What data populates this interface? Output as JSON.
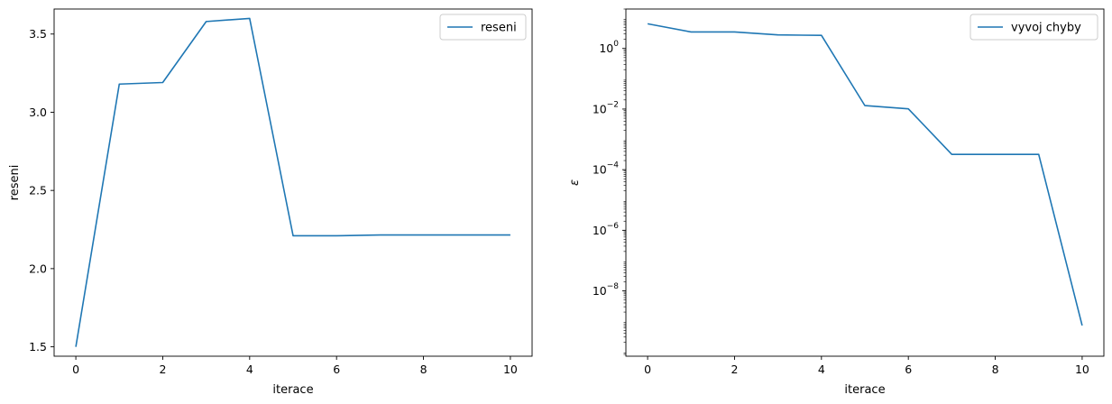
{
  "chart_data": [
    {
      "type": "line",
      "xlabel": "iterace",
      "ylabel": "reseni",
      "xlim": [
        -0.5,
        10.5
      ],
      "ylim": [
        1.44,
        3.66
      ],
      "xticks": [
        0,
        2,
        4,
        6,
        8,
        10
      ],
      "xtick_labels": [
        "0",
        "2",
        "4",
        "6",
        "8",
        "10"
      ],
      "yticks": [
        1.5,
        2.0,
        2.5,
        3.0,
        3.5
      ],
      "ytick_labels": [
        "1.5",
        "2.0",
        "2.5",
        "3.0",
        "3.5"
      ],
      "yscale": "linear",
      "grid": false,
      "legend_position": "upper right",
      "series": [
        {
          "name": "reseni",
          "color": "#1f77b4",
          "x": [
            0,
            1,
            2,
            3,
            4,
            5,
            6,
            7,
            8,
            9,
            10
          ],
          "y": [
            1.5,
            3.18,
            3.19,
            3.58,
            3.6,
            2.21,
            2.21,
            2.215,
            2.215,
            2.215,
            2.215
          ]
        }
      ]
    },
    {
      "type": "line",
      "xlabel": "iterace",
      "ylabel": "ε",
      "xlim": [
        -0.5,
        10.5
      ],
      "ylim": [
        7e-11,
        20
      ],
      "xticks": [
        0,
        2,
        4,
        6,
        8,
        10
      ],
      "xtick_labels": [
        "0",
        "2",
        "4",
        "6",
        "8",
        "10"
      ],
      "yticks": [
        1e-08,
        1e-06,
        0.0001,
        0.01,
        1
      ],
      "ytick_labels": [
        {
          "base": "10",
          "exp": "−8"
        },
        {
          "base": "10",
          "exp": "−6"
        },
        {
          "base": "10",
          "exp": "−4"
        },
        {
          "base": "10",
          "exp": "−2"
        },
        {
          "base": "10",
          "exp": "0"
        }
      ],
      "yscale": "log",
      "grid": false,
      "legend_position": "upper right",
      "series": [
        {
          "name": "vyvoj chyby",
          "color": "#1f77b4",
          "x": [
            0,
            1,
            2,
            3,
            4,
            5,
            6,
            7,
            8,
            9,
            10
          ],
          "y": [
            6.5,
            3.5,
            3.5,
            2.8,
            2.7,
            0.013,
            0.0102,
            0.00032,
            0.00032,
            0.00032,
            7.2e-10
          ]
        }
      ]
    }
  ]
}
